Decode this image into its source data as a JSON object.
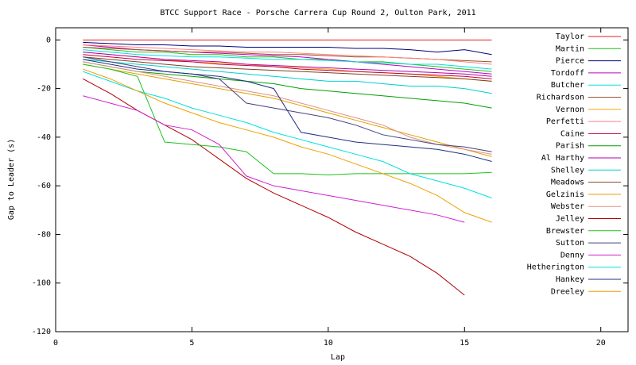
{
  "chart_data": {
    "type": "line",
    "title": "BTCC Support Race - Porsche Carrera Cup Round 2, Oulton Park, 2011",
    "x_label": "Lap",
    "y_label": "Gap to Leader (s)",
    "x": [
      1,
      2,
      3,
      4,
      5,
      6,
      7,
      8,
      9,
      10,
      11,
      12,
      13,
      14,
      15,
      16
    ],
    "xlim": [
      0,
      21
    ],
    "xticks": [
      0,
      5,
      10,
      15,
      20
    ],
    "ylim": [
      -120,
      5
    ],
    "yticks": [
      -120,
      -100,
      -80,
      -60,
      -40,
      -20,
      0
    ],
    "grid": false,
    "legend": "top-right",
    "series": [
      {
        "name": "Taylor",
        "color": "#e02020",
        "values": [
          0,
          0,
          0,
          0,
          0,
          0,
          0,
          0,
          0,
          0,
          0,
          0,
          0,
          0,
          0,
          0
        ]
      },
      {
        "name": "Martin",
        "color": "#20c020",
        "values": [
          -3,
          -4,
          -5,
          -5,
          -6,
          -6,
          -7,
          -7,
          -8,
          -8,
          -9,
          -9,
          -10,
          -11,
          -12,
          -13
        ]
      },
      {
        "name": "Pierce",
        "color": "#000080",
        "values": [
          -1,
          -1.5,
          -2,
          -2,
          -2.5,
          -2.5,
          -3,
          -3,
          -3,
          -3,
          -3.5,
          -3.5,
          -4,
          -5,
          -4,
          -6
        ]
      },
      {
        "name": "Tordoff",
        "color": "#c000c0",
        "values": [
          -2,
          -3,
          -4,
          -4.5,
          -5,
          -5.5,
          -6,
          -6.5,
          -7,
          -8,
          -9,
          -10,
          -11,
          -12,
          -13,
          -14
        ]
      },
      {
        "name": "Butcher",
        "color": "#00e0e0",
        "values": [
          -4,
          -5,
          -6,
          -6.5,
          -7,
          -7,
          -7.5,
          -8,
          -8,
          -8.5,
          -9,
          -9.5,
          -10,
          -10,
          -11,
          -12
        ]
      },
      {
        "name": "Richardson",
        "color": "#a0522d",
        "values": [
          -3,
          -3.5,
          -4,
          -4.5,
          -5,
          -5,
          -5.5,
          -6,
          -6,
          -6.5,
          -7,
          -7,
          -7.5,
          -8,
          -8.5,
          -9
        ]
      },
      {
        "name": "Vernon",
        "color": "#ffa500",
        "values": [
          -5,
          -6,
          -7,
          -8,
          -9,
          -9.5,
          -10,
          -11,
          -11.5,
          -12,
          -13,
          -13.5,
          -14,
          -15,
          -16,
          -17
        ]
      },
      {
        "name": "Perfetti",
        "color": "#ff8080",
        "values": [
          -2,
          -2.5,
          -3,
          -3.5,
          -4,
          -4.5,
          -5,
          -5,
          -5.5,
          -6,
          -6.5,
          -7,
          -7.5,
          -8,
          -9,
          -10
        ]
      },
      {
        "name": "Caine",
        "color": "#c00040",
        "values": [
          -6,
          -7,
          -8,
          -8.5,
          -9,
          -10,
          -10.5,
          -11,
          -12,
          -12.5,
          -13,
          -13.5,
          -14,
          -14.5,
          -15,
          -16
        ]
      },
      {
        "name": "Parish",
        "color": "#00a000",
        "values": [
          -9,
          -11,
          -13,
          -14,
          -15,
          -16,
          -17,
          -18,
          -20,
          -21,
          -22,
          -23,
          -24,
          -25,
          -26,
          -28
        ]
      },
      {
        "name": "Al Harthy",
        "color": "#b000b0",
        "values": [
          -5,
          -6,
          -7,
          -8,
          -8.5,
          -9,
          -10,
          -10.5,
          -11,
          -11.5,
          -12,
          -12.5,
          -13,
          -13.5,
          -14,
          -15
        ]
      },
      {
        "name": "Shelley",
        "color": "#00d0d0",
        "values": [
          -8,
          -9,
          -10,
          -11,
          -12,
          -13,
          -14,
          -15,
          -16,
          -17,
          -17,
          -18,
          -19,
          -19,
          -20,
          -22
        ]
      },
      {
        "name": "Meadows",
        "color": "#804020",
        "values": [
          -7,
          -8,
          -9,
          -10,
          -11,
          -11.5,
          -12,
          -12.5,
          -13,
          -13.5,
          -14,
          -14.5,
          -15,
          -15.5,
          -16,
          -17
        ]
      },
      {
        "name": "Gelzinis",
        "color": "#e0a000",
        "values": [
          -10,
          -12,
          -14,
          -16,
          -18,
          -20,
          -22,
          -24,
          -27,
          -30,
          -33,
          -36,
          -39,
          -42,
          -45,
          -48
        ]
      },
      {
        "name": "Webster",
        "color": "#e09080",
        "values": [
          -9,
          -11,
          -13,
          -15,
          -17,
          -19,
          -21,
          -23,
          -26,
          -29,
          -32,
          -35,
          -40,
          -43,
          -45,
          -47
        ]
      },
      {
        "name": "Jelley",
        "color": "#b00000",
        "values": [
          -16,
          -22,
          -29,
          -35,
          -41,
          -49,
          -57,
          -63,
          -68,
          -73,
          -79,
          -84,
          -89,
          -96,
          -105,
          null
        ]
      },
      {
        "name": "Brewster",
        "color": "#20c020",
        "values": [
          -10,
          -12,
          -15,
          -42,
          -43,
          -44,
          -46,
          -55,
          -55,
          -55.5,
          -55,
          -55,
          -55,
          -55,
          -55,
          -54.5
        ]
      },
      {
        "name": "Sutton",
        "color": "#404080",
        "values": [
          -7,
          -9,
          -11,
          -13,
          -14,
          -16,
          -26,
          -28,
          -30,
          -32,
          -35,
          -39,
          -41,
          -43,
          -44,
          -46
        ]
      },
      {
        "name": "Denny",
        "color": "#d020d0",
        "values": [
          -23,
          -26,
          -29,
          -35,
          -37,
          -43,
          -56,
          -60,
          -62,
          -64,
          -66,
          -68,
          -70,
          -72,
          -75,
          null
        ]
      },
      {
        "name": "Hetherington",
        "color": "#00e0e0",
        "values": [
          -13,
          -17,
          -21,
          -24,
          -28,
          -31,
          -34,
          -38,
          -41,
          -44,
          -47,
          -50,
          -55,
          -58,
          -61,
          -65
        ]
      },
      {
        "name": "Hankey",
        "color": "#203080",
        "values": [
          -8,
          -10,
          -12,
          -13,
          -14,
          -15,
          -17,
          -20,
          -38,
          -40,
          -42,
          -43,
          -44,
          -45,
          -47,
          -50
        ]
      },
      {
        "name": "Dreeley",
        "color": "#f0a000",
        "values": [
          -12,
          -16,
          -21,
          -26,
          -30,
          -34,
          -37,
          -40,
          -44,
          -47,
          -51,
          -55,
          -59,
          -64,
          -71,
          -75
        ]
      }
    ]
  }
}
